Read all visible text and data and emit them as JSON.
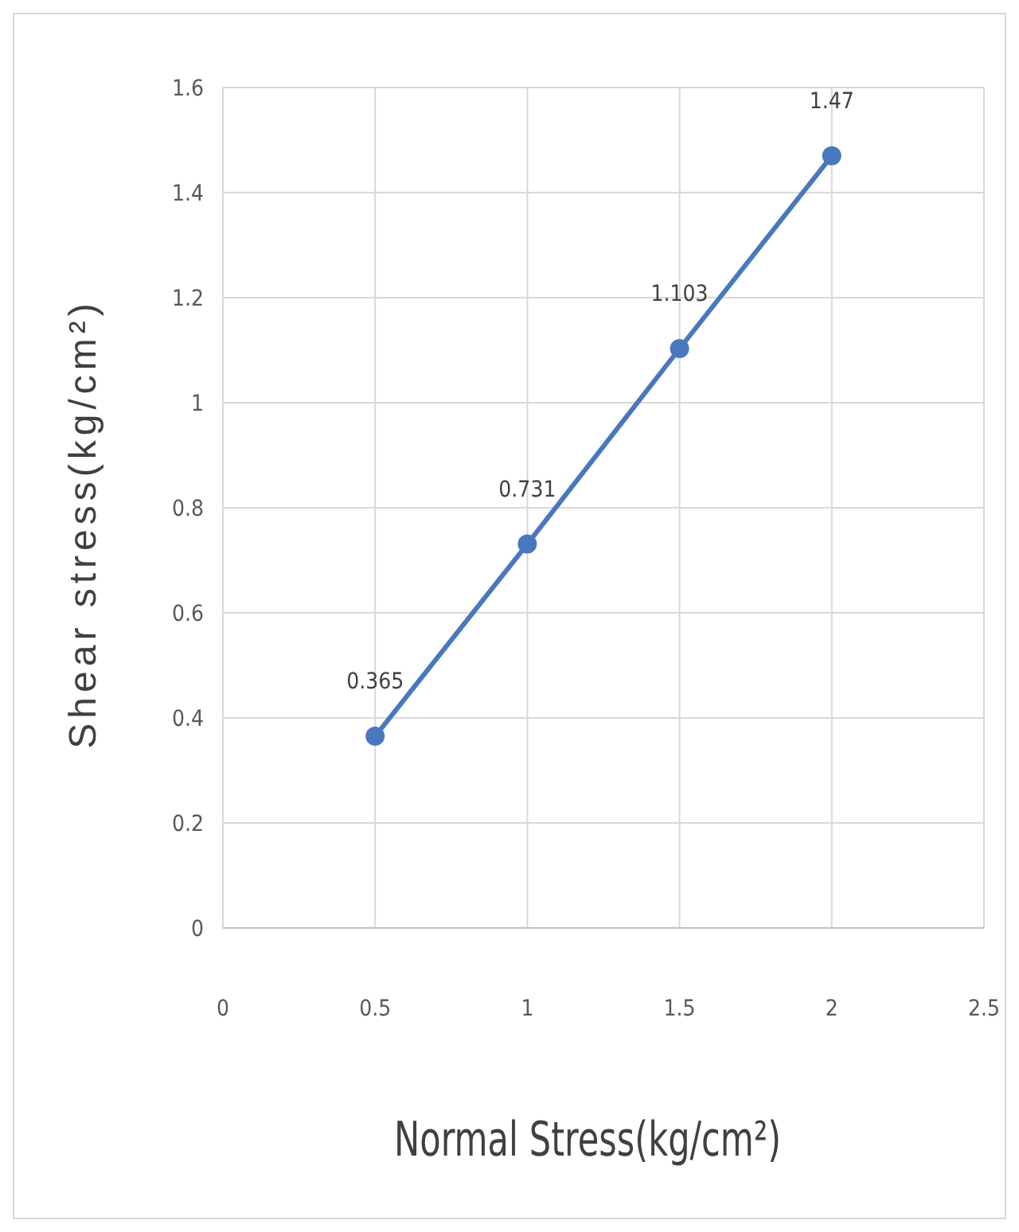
{
  "chart_data": {
    "type": "line",
    "xlabel": "Normal Stress(kg/cm²)",
    "ylabel": "Shear stress(kg/cm²)",
    "x": [
      0.5,
      1,
      1.5,
      2
    ],
    "series": [
      {
        "color": "#4a78be",
        "values": [
          0.365,
          0.731,
          1.103,
          1.47
        ]
      }
    ],
    "data_labels": true,
    "marker": "circle",
    "line_style": "solid",
    "grid": true,
    "xlim": [
      0,
      2.5
    ],
    "xticks": [
      0,
      0.5,
      1,
      1.5,
      2,
      2.5
    ],
    "ylim": [
      0,
      1.6
    ],
    "yticks": [
      0,
      0.2,
      0.4,
      0.6,
      0.8,
      1,
      1.2,
      1.4,
      1.6
    ]
  }
}
